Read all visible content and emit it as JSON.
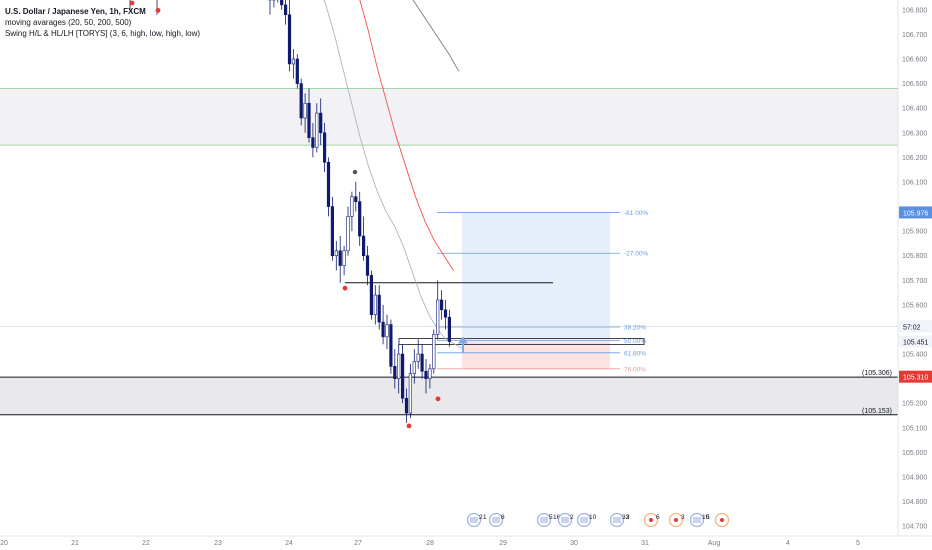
{
  "legend": {
    "title": "U.S. Dollar / Japanese Yen, 1h, FXCM",
    "indicator_ma": "moving avarages (20, 50, 200, 500)",
    "indicator_swing": "Swing H/L & HL/LH [TORYS] (3, 6, high, low, high, low)"
  },
  "colors": {
    "candle": "#0f1a6e",
    "ma_fast": "#b2b5be",
    "ma_slow": "#ef5350",
    "ma_long": "#787b86",
    "swing_low": "#e53935",
    "swing_high": "#555555",
    "profit_zone": "#dbe7fb",
    "loss_zone": "#fde2e2",
    "fib_blue": "#6a9ce8",
    "fib_red": "#ef9a9a",
    "price_badge_blue": "#5b8fe0",
    "price_badge_red": "#e53935",
    "grey_zone": "#e9e9ec",
    "green_line": "#a5d6a7",
    "arrow": "#7fa6e6"
  },
  "chart_data": {
    "type": "candlestick",
    "symbol": "U.S. Dollar / Japanese Yen",
    "timeframe": "1h",
    "source": "FXCM",
    "y_range": [
      104.66,
      106.84
    ],
    "x_labels": [
      "20",
      "21",
      "22",
      "23",
      "24",
      "27",
      "28",
      "29",
      "30",
      "31",
      "Aug",
      "4",
      "5"
    ],
    "y_ticks": [
      106.8,
      106.7,
      106.6,
      106.5,
      106.4,
      106.3,
      106.2,
      106.1,
      105.9,
      105.8,
      105.7,
      105.6,
      105.4,
      105.2,
      105.1,
      105.0,
      104.9,
      104.8,
      104.7
    ],
    "candles": [
      {
        "o": 106.86,
        "h": 106.92,
        "l": 106.78,
        "c": 106.84
      },
      {
        "o": 106.84,
        "h": 106.9,
        "l": 106.81,
        "c": 106.87
      },
      {
        "o": 106.87,
        "h": 106.92,
        "l": 106.83,
        "c": 106.85
      },
      {
        "o": 106.86,
        "h": 106.9,
        "l": 106.8,
        "c": 106.82
      },
      {
        "o": 106.82,
        "h": 106.86,
        "l": 106.74,
        "c": 106.78
      },
      {
        "o": 106.78,
        "h": 106.84,
        "l": 106.55,
        "c": 106.58
      },
      {
        "o": 106.58,
        "h": 106.64,
        "l": 106.52,
        "c": 106.6
      },
      {
        "o": 106.6,
        "h": 106.62,
        "l": 106.48,
        "c": 106.5
      },
      {
        "o": 106.5,
        "h": 106.52,
        "l": 106.33,
        "c": 106.36
      },
      {
        "o": 106.36,
        "h": 106.46,
        "l": 106.3,
        "c": 106.42
      },
      {
        "o": 106.42,
        "h": 106.48,
        "l": 106.26,
        "c": 106.28
      },
      {
        "o": 106.28,
        "h": 106.34,
        "l": 106.2,
        "c": 106.24
      },
      {
        "o": 106.24,
        "h": 106.42,
        "l": 106.22,
        "c": 106.38
      },
      {
        "o": 106.38,
        "h": 106.44,
        "l": 106.25,
        "c": 106.3
      },
      {
        "o": 106.3,
        "h": 106.34,
        "l": 106.14,
        "c": 106.18
      },
      {
        "o": 106.18,
        "h": 106.2,
        "l": 105.96,
        "c": 106.0
      },
      {
        "o": 106.0,
        "h": 106.04,
        "l": 105.78,
        "c": 105.8
      },
      {
        "o": 105.8,
        "h": 105.86,
        "l": 105.74,
        "c": 105.82
      },
      {
        "o": 105.82,
        "h": 105.88,
        "l": 105.69,
        "c": 105.76
      },
      {
        "o": 105.76,
        "h": 105.84,
        "l": 105.72,
        "c": 105.82
      },
      {
        "o": 105.82,
        "h": 106.0,
        "l": 105.8,
        "c": 105.96
      },
      {
        "o": 105.96,
        "h": 106.06,
        "l": 105.9,
        "c": 106.04
      },
      {
        "o": 106.04,
        "h": 106.1,
        "l": 105.98,
        "c": 106.02
      },
      {
        "o": 106.02,
        "h": 106.06,
        "l": 105.84,
        "c": 105.88
      },
      {
        "o": 105.88,
        "h": 105.96,
        "l": 105.78,
        "c": 105.8
      },
      {
        "o": 105.8,
        "h": 105.84,
        "l": 105.68,
        "c": 105.72
      },
      {
        "o": 105.72,
        "h": 105.74,
        "l": 105.54,
        "c": 105.56
      },
      {
        "o": 105.56,
        "h": 105.68,
        "l": 105.52,
        "c": 105.64
      },
      {
        "o": 105.64,
        "h": 105.68,
        "l": 105.5,
        "c": 105.53
      },
      {
        "o": 105.53,
        "h": 105.6,
        "l": 105.44,
        "c": 105.47
      },
      {
        "o": 105.47,
        "h": 105.56,
        "l": 105.42,
        "c": 105.52
      },
      {
        "o": 105.52,
        "h": 105.54,
        "l": 105.32,
        "c": 105.35
      },
      {
        "o": 105.35,
        "h": 105.42,
        "l": 105.26,
        "c": 105.3
      },
      {
        "o": 105.3,
        "h": 105.44,
        "l": 105.24,
        "c": 105.4
      },
      {
        "o": 105.4,
        "h": 105.44,
        "l": 105.2,
        "c": 105.22
      },
      {
        "o": 105.22,
        "h": 105.26,
        "l": 105.12,
        "c": 105.16
      },
      {
        "o": 105.16,
        "h": 105.36,
        "l": 105.14,
        "c": 105.32
      },
      {
        "o": 105.32,
        "h": 105.42,
        "l": 105.28,
        "c": 105.37
      },
      {
        "o": 105.37,
        "h": 105.46,
        "l": 105.34,
        "c": 105.4
      },
      {
        "o": 105.4,
        "h": 105.44,
        "l": 105.3,
        "c": 105.33
      },
      {
        "o": 105.33,
        "h": 105.38,
        "l": 105.24,
        "c": 105.3
      },
      {
        "o": 105.3,
        "h": 105.36,
        "l": 105.26,
        "c": 105.34
      },
      {
        "o": 105.34,
        "h": 105.5,
        "l": 105.32,
        "c": 105.48
      },
      {
        "o": 105.48,
        "h": 105.7,
        "l": 105.46,
        "c": 105.62
      },
      {
        "o": 105.62,
        "h": 105.66,
        "l": 105.54,
        "c": 105.58
      },
      {
        "o": 105.58,
        "h": 105.62,
        "l": 105.5,
        "c": 105.55
      },
      {
        "o": 105.55,
        "h": 105.58,
        "l": 105.43,
        "c": 105.451
      }
    ],
    "moving_averages": [
      {
        "name": "20",
        "color_key": "ma_fast",
        "values": [
          107.1,
          107.0,
          106.92,
          106.82,
          106.7,
          106.56,
          106.42,
          106.28,
          106.16,
          106.06,
          105.98,
          105.92,
          105.84,
          105.74,
          105.64,
          105.56,
          105.5,
          105.46,
          105.44,
          105.42
        ]
      },
      {
        "name": "50",
        "color_key": "ma_slow",
        "values": [
          107.2,
          107.1,
          106.98,
          106.86,
          106.72,
          106.56,
          106.42,
          106.28,
          106.16,
          106.04,
          105.94,
          105.86,
          105.8,
          105.74
        ]
      },
      {
        "name": "200",
        "color_key": "ma_long",
        "values": [
          106.92,
          106.86,
          106.8,
          106.74,
          106.68,
          106.62,
          106.55
        ]
      }
    ],
    "swing_lows": [
      105.68,
      105.12,
      105.23
    ],
    "swing_highs": [
      106.14
    ],
    "price_labels": {
      "target": "105.976",
      "timer": "57:02",
      "last": "105.451",
      "level_upper": "105.310",
      "level_upper_note": "(105.306)",
      "level_lower_note": "(105.153)"
    },
    "fib_labels": [
      "-61.00%",
      "-27.00%",
      "38.20%",
      "50.00%",
      "61.80%",
      "76.00%"
    ],
    "levels": {
      "resistance_zone": [
        106.25,
        106.48
      ],
      "support_zone": [
        105.153,
        105.306
      ],
      "horizontal_high": 105.69,
      "fib_target1": 105.976,
      "fib_target2": 105.81,
      "fib_38": 105.51,
      "fib_50": 105.455,
      "fib_618": 105.405,
      "fib_76": 105.34,
      "entry": 105.451
    },
    "events": [
      {
        "flag": "us",
        "text": "2",
        "extra": "1"
      },
      {
        "flag": "us",
        "text": "8"
      },
      {
        "flag": "us",
        "text": "5",
        "extra": "16"
      },
      {
        "flag": "us",
        "text": "2"
      },
      {
        "flag": "us",
        "text": "10"
      },
      {
        "flag": "us",
        "text": "33",
        "extra": "2"
      },
      {
        "flag": "jp",
        "text": "6"
      },
      {
        "flag": "jp",
        "text": "3"
      },
      {
        "flag": "us",
        "text": "10",
        "extra": "5"
      },
      {
        "flag": "jp",
        "text": ""
      }
    ]
  }
}
